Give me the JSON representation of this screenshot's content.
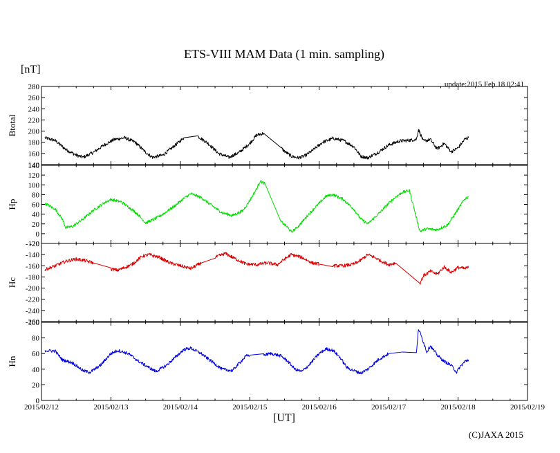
{
  "chart_data": {
    "type": "line",
    "title": "ETS-VIII MAM Data (1 min. sampling)",
    "unit_label": "[nT]",
    "update_text": "update:2015 Feb 18 02:41",
    "xlabel": "[UT]",
    "credit": "(C)JAXA 2015",
    "x_ticks": [
      "2015/02/12",
      "2015/02/13",
      "2015/02/14",
      "2015/02/15",
      "2015/02/16",
      "2015/02/17",
      "2015/02/18",
      "2015/02/19"
    ],
    "x_range_days": [
      0,
      7
    ],
    "x_units": "days since 2015/02/12 00:00 UT",
    "panels": [
      {
        "name": "Btotal",
        "color": "#000000",
        "ylim": [
          140,
          280
        ],
        "yticks": [
          "280",
          "260",
          "240",
          "220",
          "200",
          "180",
          "160",
          "140"
        ],
        "ytick_values": [
          280,
          260,
          240,
          220,
          200,
          180,
          160,
          140
        ],
        "noise": 3,
        "series": [
          [
            0.05,
            188
          ],
          [
            0.2,
            183
          ],
          [
            0.35,
            167
          ],
          [
            0.5,
            157
          ],
          [
            0.6,
            153
          ],
          [
            0.75,
            162
          ],
          [
            0.9,
            175
          ],
          [
            1.05,
            185
          ],
          [
            1.2,
            188
          ],
          [
            1.35,
            180
          ],
          [
            1.5,
            162
          ],
          [
            1.6,
            153
          ],
          [
            1.75,
            157
          ],
          [
            1.9,
            172
          ],
          [
            2.05,
            188
          ],
          [
            2.25,
            191
          ],
          [
            2.4,
            178
          ],
          [
            2.55,
            160
          ],
          [
            2.7,
            153
          ],
          [
            2.85,
            162
          ],
          [
            3.0,
            178
          ],
          [
            3.1,
            193
          ],
          [
            3.2,
            196
          ],
          [
            3.45,
            170
          ],
          [
            3.5,
            164
          ],
          [
            3.6,
            155
          ],
          [
            3.7,
            152
          ],
          [
            3.8,
            156
          ],
          [
            3.9,
            165
          ],
          [
            4.05,
            180
          ],
          [
            4.2,
            187
          ],
          [
            4.35,
            183
          ],
          [
            4.5,
            172
          ],
          [
            4.6,
            155
          ],
          [
            4.7,
            152
          ],
          [
            4.85,
            162
          ],
          [
            5.0,
            175
          ],
          [
            5.15,
            182
          ],
          [
            5.25,
            183
          ],
          [
            5.4,
            185
          ],
          [
            5.43,
            203
          ],
          [
            5.5,
            182
          ],
          [
            5.6,
            185
          ],
          [
            5.7,
            168
          ],
          [
            5.8,
            178
          ],
          [
            5.9,
            163
          ],
          [
            6.0,
            170
          ],
          [
            6.1,
            186
          ],
          [
            6.15,
            188
          ]
        ]
      },
      {
        "name": "Hp",
        "color": "#00dd00",
        "ylim": [
          -20,
          140
        ],
        "yticks": [
          "140",
          "120",
          "100",
          "80",
          "60",
          "40",
          "20",
          "0",
          "-20"
        ],
        "ytick_values": [
          140,
          120,
          100,
          80,
          60,
          40,
          20,
          0,
          -20
        ],
        "noise": 3,
        "series": [
          [
            0.05,
            62
          ],
          [
            0.2,
            50
          ],
          [
            0.3,
            30
          ],
          [
            0.35,
            12
          ],
          [
            0.45,
            15
          ],
          [
            0.6,
            30
          ],
          [
            0.75,
            48
          ],
          [
            0.9,
            63
          ],
          [
            1.0,
            70
          ],
          [
            1.15,
            65
          ],
          [
            1.3,
            50
          ],
          [
            1.4,
            38
          ],
          [
            1.5,
            22
          ],
          [
            1.6,
            28
          ],
          [
            1.75,
            40
          ],
          [
            1.9,
            55
          ],
          [
            2.05,
            72
          ],
          [
            2.15,
            82
          ],
          [
            2.3,
            74
          ],
          [
            2.45,
            58
          ],
          [
            2.6,
            43
          ],
          [
            2.75,
            37
          ],
          [
            2.9,
            47
          ],
          [
            3.0,
            68
          ],
          [
            3.1,
            92
          ],
          [
            3.15,
            108
          ],
          [
            3.22,
            102
          ],
          [
            3.45,
            25
          ],
          [
            3.55,
            12
          ],
          [
            3.6,
            3
          ],
          [
            3.7,
            15
          ],
          [
            3.85,
            40
          ],
          [
            4.0,
            62
          ],
          [
            4.1,
            77
          ],
          [
            4.2,
            80
          ],
          [
            4.35,
            70
          ],
          [
            4.5,
            50
          ],
          [
            4.6,
            30
          ],
          [
            4.7,
            20
          ],
          [
            4.85,
            40
          ],
          [
            5.0,
            62
          ],
          [
            5.1,
            75
          ],
          [
            5.2,
            85
          ],
          [
            5.3,
            88
          ],
          [
            5.45,
            5
          ],
          [
            5.55,
            10
          ],
          [
            5.7,
            8
          ],
          [
            5.85,
            18
          ],
          [
            6.0,
            50
          ],
          [
            6.1,
            72
          ],
          [
            6.15,
            75
          ]
        ]
      },
      {
        "name": "Hc",
        "color": "#dd0000",
        "ylim": [
          -260,
          -120
        ],
        "yticks": [
          "-120",
          "-140",
          "-160",
          "-180",
          "-200",
          "-220",
          "-240",
          "-260"
        ],
        "ytick_values": [
          -120,
          -140,
          -160,
          -180,
          -200,
          -220,
          -240,
          -260
        ],
        "noise": 3,
        "series": [
          [
            0.05,
            -167
          ],
          [
            0.2,
            -160
          ],
          [
            0.35,
            -152
          ],
          [
            0.5,
            -148
          ],
          [
            0.6,
            -150
          ],
          [
            0.75,
            -155
          ],
          [
            1.0,
            -166
          ],
          [
            1.1,
            -168
          ],
          [
            1.3,
            -158
          ],
          [
            1.45,
            -143
          ],
          [
            1.55,
            -140
          ],
          [
            1.7,
            -145
          ],
          [
            1.85,
            -155
          ],
          [
            2.0,
            -160
          ],
          [
            2.15,
            -165
          ],
          [
            2.3,
            -155
          ],
          [
            2.5,
            -145
          ],
          [
            2.65,
            -138
          ],
          [
            2.8,
            -148
          ],
          [
            2.95,
            -157
          ],
          [
            3.1,
            -158
          ],
          [
            3.25,
            -155
          ],
          [
            3.4,
            -158
          ],
          [
            3.5,
            -148
          ],
          [
            3.6,
            -140
          ],
          [
            3.75,
            -145
          ],
          [
            3.9,
            -155
          ],
          [
            4.0,
            -157
          ],
          [
            4.2,
            -160
          ],
          [
            4.35,
            -160
          ],
          [
            4.5,
            -157
          ],
          [
            4.6,
            -150
          ],
          [
            4.7,
            -140
          ],
          [
            4.8,
            -145
          ],
          [
            4.9,
            -152
          ],
          [
            5.0,
            -158
          ],
          [
            5.1,
            -155
          ],
          [
            5.45,
            -192
          ],
          [
            5.5,
            -178
          ],
          [
            5.6,
            -170
          ],
          [
            5.7,
            -175
          ],
          [
            5.8,
            -162
          ],
          [
            5.9,
            -172
          ],
          [
            6.0,
            -163
          ],
          [
            6.1,
            -165
          ],
          [
            6.15,
            -163
          ]
        ]
      },
      {
        "name": "Hn",
        "color": "#0000dd",
        "ylim": [
          0,
          100
        ],
        "yticks": [
          "100",
          "80",
          "60",
          "40",
          "20",
          "0"
        ],
        "ytick_values": [
          100,
          80,
          60,
          40,
          20,
          0
        ],
        "noise": 2,
        "series": [
          [
            0.05,
            64
          ],
          [
            0.2,
            63
          ],
          [
            0.3,
            52
          ],
          [
            0.45,
            48
          ],
          [
            0.6,
            38
          ],
          [
            0.7,
            36
          ],
          [
            0.85,
            45
          ],
          [
            1.0,
            60
          ],
          [
            1.1,
            64
          ],
          [
            1.25,
            60
          ],
          [
            1.4,
            50
          ],
          [
            1.55,
            42
          ],
          [
            1.65,
            37
          ],
          [
            1.8,
            45
          ],
          [
            1.95,
            57
          ],
          [
            2.05,
            65
          ],
          [
            2.15,
            67
          ],
          [
            2.3,
            60
          ],
          [
            2.45,
            50
          ],
          [
            2.6,
            40
          ],
          [
            2.75,
            38
          ],
          [
            2.85,
            48
          ],
          [
            2.95,
            57
          ],
          [
            3.0,
            58
          ],
          [
            3.2,
            58
          ],
          [
            3.3,
            60
          ],
          [
            3.45,
            57
          ],
          [
            3.55,
            50
          ],
          [
            3.65,
            40
          ],
          [
            3.75,
            37
          ],
          [
            3.85,
            45
          ],
          [
            4.0,
            60
          ],
          [
            4.1,
            66
          ],
          [
            4.2,
            64
          ],
          [
            4.3,
            55
          ],
          [
            4.4,
            42
          ],
          [
            4.5,
            38
          ],
          [
            4.6,
            35
          ],
          [
            4.7,
            40
          ],
          [
            4.85,
            52
          ],
          [
            5.0,
            60
          ],
          [
            5.2,
            62
          ],
          [
            5.4,
            60
          ],
          [
            5.43,
            92
          ],
          [
            5.5,
            75
          ],
          [
            5.55,
            62
          ],
          [
            5.6,
            70
          ],
          [
            5.7,
            58
          ],
          [
            5.8,
            50
          ],
          [
            5.9,
            45
          ],
          [
            5.98,
            36
          ],
          [
            6.02,
            42
          ],
          [
            6.1,
            50
          ],
          [
            6.15,
            52
          ]
        ]
      }
    ]
  }
}
